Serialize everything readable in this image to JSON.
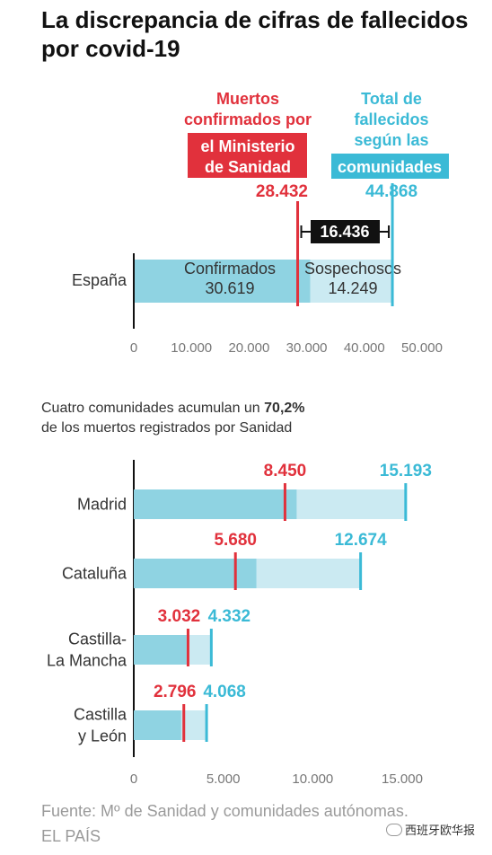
{
  "title": "La discrepancia de cifras de fallecidos por covid-19",
  "colors": {
    "red": "#e1313c",
    "blue": "#3bbad6",
    "confirmed_fill": "#8fd3e2",
    "suspected_fill": "#cbeaf2",
    "axis": "#111111",
    "tick": "#777777"
  },
  "chart_data": [
    {
      "type": "bar",
      "orientation": "horizontal",
      "stacked": true,
      "categories": [
        "España"
      ],
      "series": [
        {
          "name": "Confirmados",
          "values": [
            30619
          ],
          "label": "Confirmados",
          "value_label": "30.619"
        },
        {
          "name": "Sospechosos",
          "values": [
            14249
          ],
          "label": "Sospechosos",
          "value_label": "14.249"
        }
      ],
      "markers": [
        {
          "label_lines": [
            "Muertos",
            "confirmados por"
          ],
          "label_boxed": [
            "el Ministerio",
            "de Sanidad"
          ],
          "value": 28432,
          "value_label": "28.432",
          "color": "red"
        },
        {
          "label_lines": [
            "Total de",
            "fallecidos",
            "según las"
          ],
          "label_boxed": [
            "comunidades"
          ],
          "value": 44868,
          "value_label": "44.868",
          "color": "blue"
        }
      ],
      "difference": {
        "value": 16436,
        "label": "16.436"
      },
      "xlim": [
        0,
        50000
      ],
      "xticks": [
        "0",
        "10.000",
        "20.000",
        "30.000",
        "40.000",
        "50.000"
      ],
      "xtick_values": [
        0,
        10000,
        20000,
        30000,
        40000,
        50000
      ]
    },
    {
      "type": "bar",
      "orientation": "horizontal",
      "stacked": true,
      "subtitle_pre": "Cuatro comunidades acumulan un ",
      "subtitle_bold": "70,2%",
      "subtitle_post": "de los muertos registrados por Sanidad",
      "categories": [
        [
          "Madrid"
        ],
        [
          "Cataluña"
        ],
        [
          "Castilla-",
          "La Mancha"
        ],
        [
          "Castilla",
          "y León"
        ]
      ],
      "confirmed": [
        9100,
        6850,
        2950,
        2650
      ],
      "sanidad": [
        8450,
        5680,
        3032,
        2796
      ],
      "sanidad_labels": [
        "8.450",
        "5.680",
        "3.032",
        "2.796"
      ],
      "comunidades": [
        15193,
        12674,
        4332,
        4068
      ],
      "comunidades_labels": [
        "15.193",
        "12.674",
        "4.332",
        "4.068"
      ],
      "xlim": [
        0,
        15000
      ],
      "xticks": [
        "0",
        "5.000",
        "10.000",
        "15.000"
      ],
      "xtick_values": [
        0,
        5000,
        10000,
        15000
      ]
    }
  ],
  "footer": {
    "source": "Fuente: Mº de Sanidad y comunidades autónomas.",
    "credit": "EL PAÍS"
  },
  "watermark": "西班牙欧华报"
}
